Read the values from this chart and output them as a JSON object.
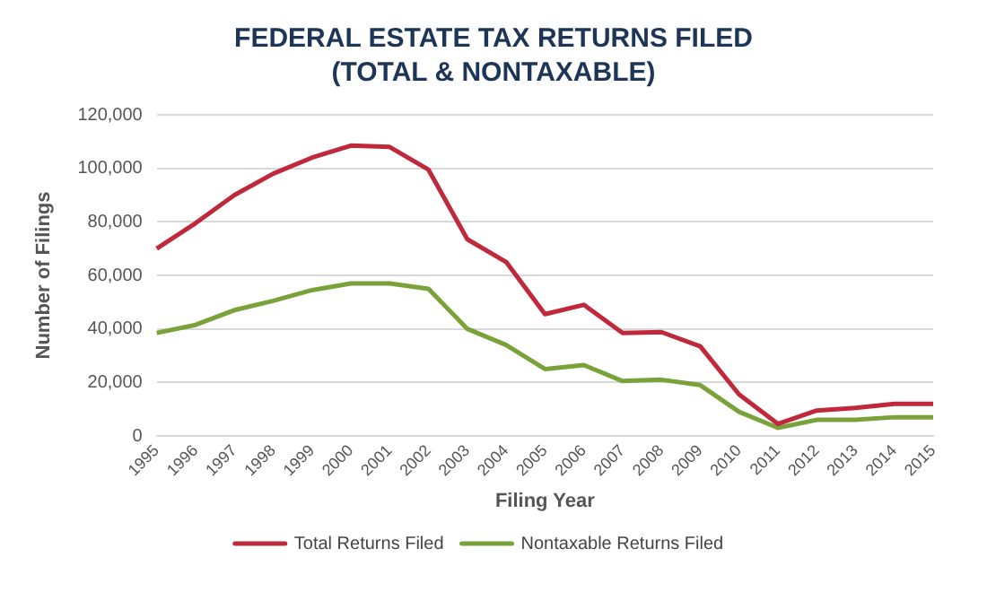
{
  "chart_data": {
    "type": "line",
    "title": "FEDERAL ESTATE TAX RETURNS FILED\n(TOTAL & NONTAXABLE)",
    "xlabel": "Filing Year",
    "ylabel": "Number of Filings",
    "categories": [
      "1995",
      "1996",
      "1997",
      "1998",
      "1999",
      "2000",
      "2001",
      "2002",
      "2003",
      "2004",
      "2005",
      "2006",
      "2007",
      "2008",
      "2009",
      "2010",
      "2011",
      "2012",
      "2013",
      "2014",
      "2015"
    ],
    "series": [
      {
        "name": "Total Returns Filed",
        "color": "#c0283b",
        "values": [
          70000,
          79500,
          90000,
          98000,
          104000,
          108500,
          108000,
          99500,
          73500,
          65000,
          45500,
          49000,
          38500,
          38800,
          33500,
          15500,
          4500,
          9500,
          10500,
          12000,
          12000
        ]
      },
      {
        "name": "Nontaxable Returns Filed",
        "color": "#7aa23a",
        "values": [
          38500,
          41500,
          47000,
          50500,
          54500,
          57000,
          57000,
          55000,
          40000,
          34000,
          25000,
          26500,
          20500,
          21000,
          19000,
          9000,
          3000,
          6000,
          6000,
          7000,
          7000
        ]
      }
    ],
    "ylim": [
      0,
      120000
    ],
    "yticks": [
      {
        "value": 0,
        "label": "0"
      },
      {
        "value": 20000,
        "label": "20,000"
      },
      {
        "value": 40000,
        "label": "40,000"
      },
      {
        "value": 60000,
        "label": "60,000"
      },
      {
        "value": 80000,
        "label": "80,000"
      },
      {
        "value": 100000,
        "label": "100,000"
      },
      {
        "value": 120000,
        "label": "120,000"
      }
    ],
    "grid": "y",
    "legend": "bottom",
    "marker": "none",
    "line_style": "solid"
  }
}
